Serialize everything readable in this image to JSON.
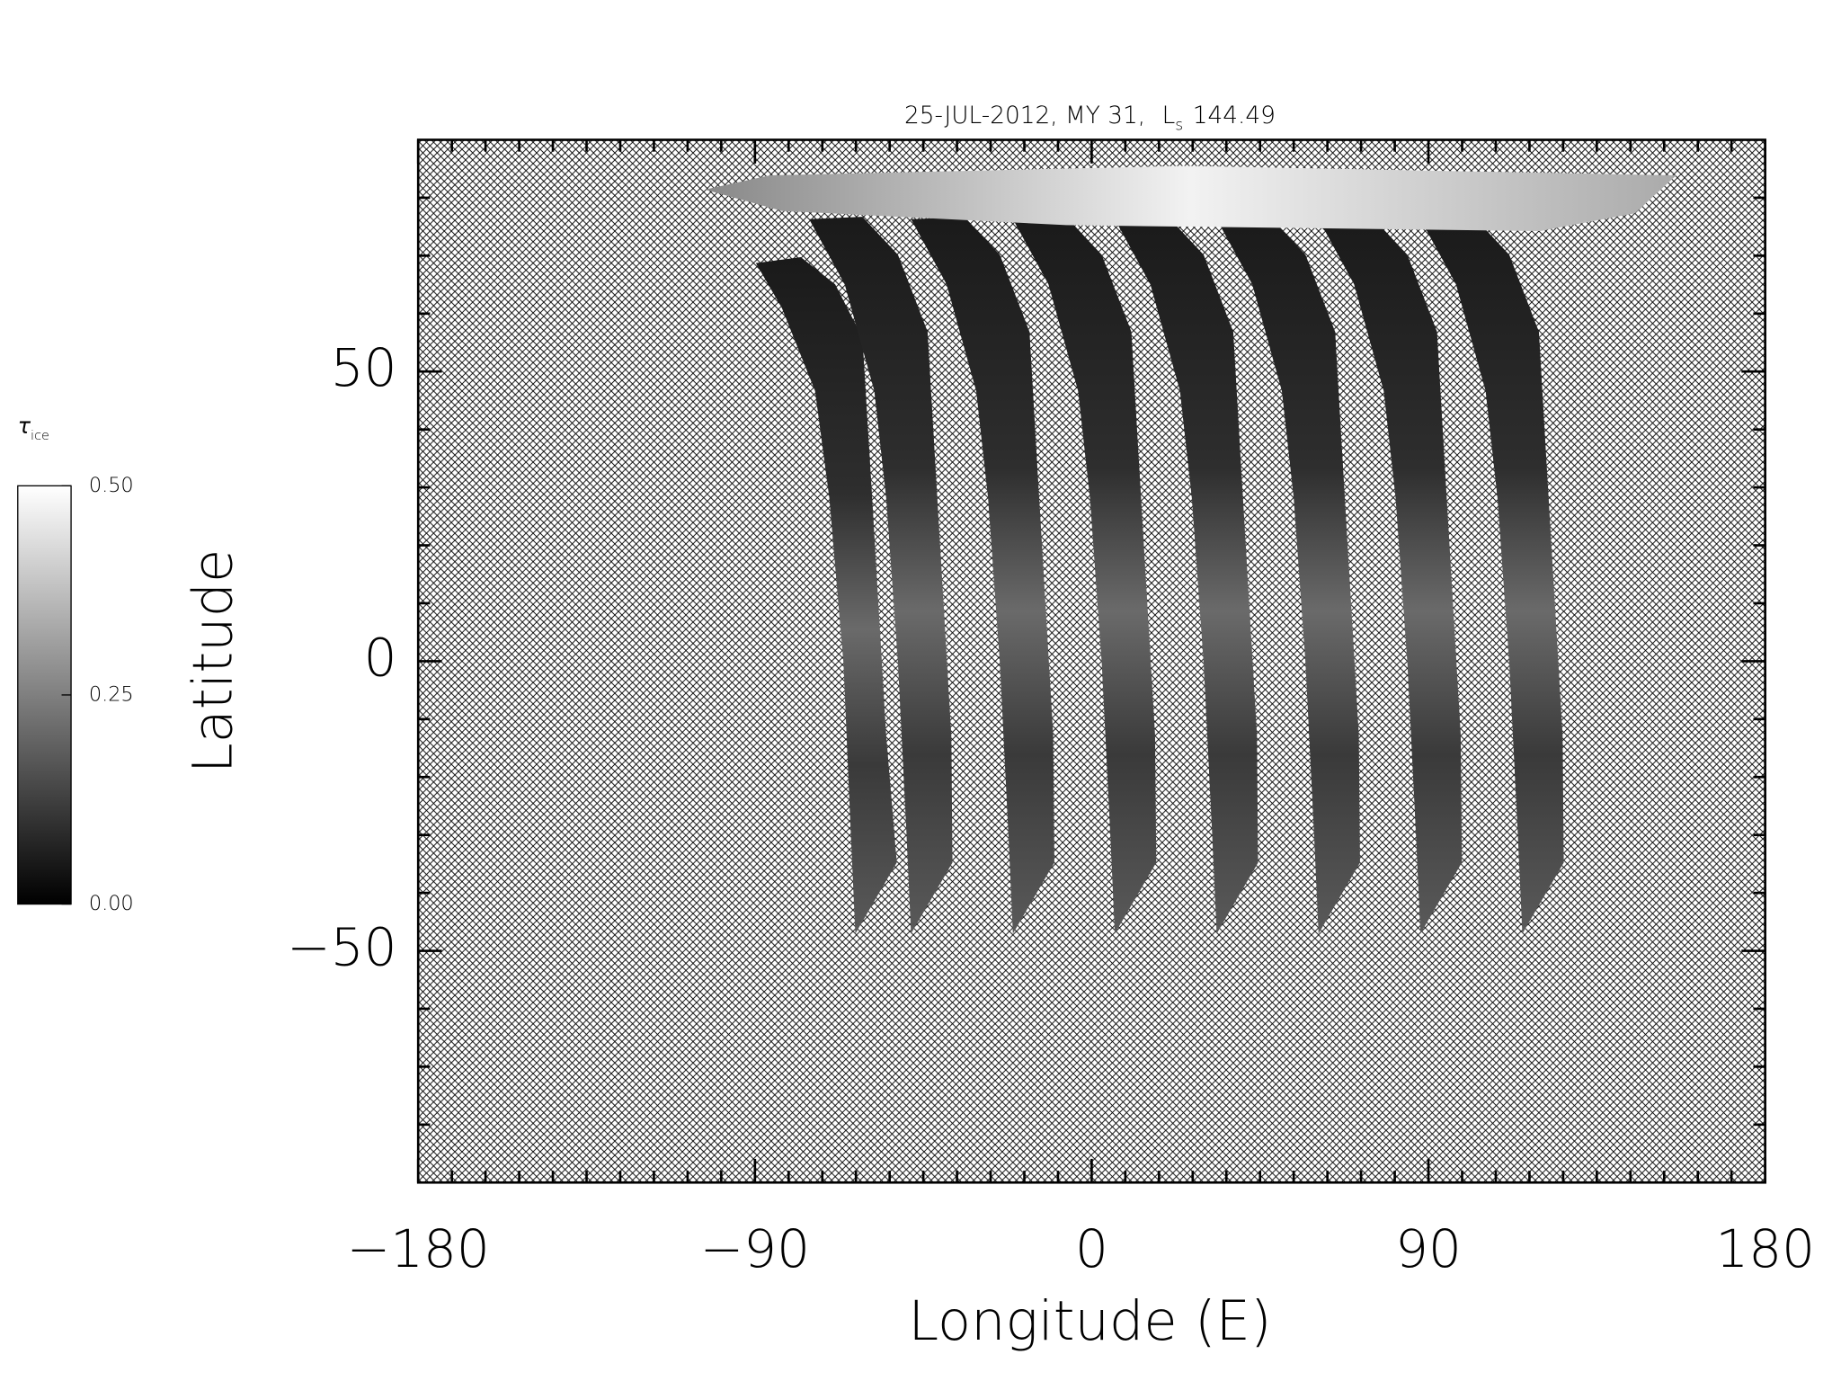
{
  "chart_data": {
    "type": "map",
    "title": [
      "25-JUL-2012, MY 31,",
      "L",
      "s",
      "144.49"
    ],
    "xlabel": "Longitude (E)",
    "ylabel": "Latitude",
    "xlim": [
      -180,
      180
    ],
    "ylim": [
      -90,
      90
    ],
    "xticks": [
      -180,
      -90,
      0,
      90,
      180
    ],
    "yticks": [
      -50,
      0,
      50
    ],
    "xminorticks": [
      -171,
      -162,
      -153,
      -144,
      -135,
      -126,
      -117,
      -108,
      -99,
      -81,
      -72,
      -63,
      -54,
      -45,
      -36,
      -27,
      -18,
      -9,
      9,
      18,
      27,
      36,
      45,
      54,
      63,
      72,
      81,
      99,
      108,
      117,
      126,
      135,
      144,
      153,
      162,
      171
    ],
    "yminorticks": [
      -80,
      -70,
      -60,
      -40,
      -30,
      -20,
      -10,
      10,
      20,
      30,
      40,
      60,
      70,
      80
    ],
    "colorbar": {
      "label": [
        "τ",
        "ice"
      ],
      "lim": [
        0,
        0.5
      ],
      "ticks": [
        {
          "value": 0,
          "label": "0.00"
        },
        {
          "value": 0.25,
          "label": "0.25"
        },
        {
          "value": 0.5,
          "label": "0.50"
        }
      ],
      "colors": [
        "#000000",
        "#ffffff"
      ]
    }
  }
}
